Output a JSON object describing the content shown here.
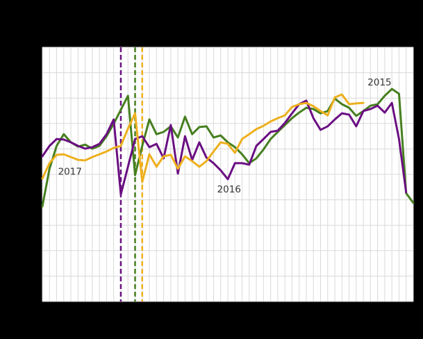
{
  "page": {
    "background_color": "#000000",
    "plot_background_color": "#ffffff",
    "grid_color": "#d9d9d9",
    "annotation_text_color": "#333333"
  },
  "chart_data": {
    "type": "line",
    "x_unit": "week",
    "x_range": [
      1,
      53
    ],
    "ylim": [
      0,
      10
    ],
    "y_gridline_step": 1,
    "grid": true,
    "legend": "none",
    "note": "Axis tick labels and title are not visible in the screenshot (black-on-black); y values estimated in gridline units, x in week numbers.",
    "series": [
      {
        "name": "2015",
        "color": "#467f1f",
        "start_week": 1,
        "values": [
          3.74,
          5.22,
          6.12,
          6.58,
          6.26,
          6.09,
          6.17,
          6.01,
          6.12,
          6.5,
          6.99,
          7.54,
          8.09,
          4.97,
          6.12,
          7.16,
          6.58,
          6.67,
          6.89,
          6.45,
          7.27,
          6.58,
          6.86,
          6.89,
          6.45,
          6.53,
          6.26,
          6.07,
          5.79,
          5.44,
          5.63,
          5.98,
          6.39,
          6.67,
          6.94,
          7.21,
          7.43,
          7.62,
          7.57,
          7.4,
          7.49,
          7.98,
          7.76,
          7.62,
          7.3,
          7.49,
          7.7,
          7.76,
          8.09,
          8.36,
          8.17,
          4.26,
          3.88
        ]
      },
      {
        "name": "2016",
        "color": "#6a0f82",
        "start_week": 1,
        "values": [
          5.71,
          6.12,
          6.39,
          6.37,
          6.26,
          6.12,
          6.01,
          6.07,
          6.2,
          6.58,
          7.16,
          4.21,
          5.3,
          6.39,
          6.5,
          6.07,
          6.2,
          5.63,
          6.94,
          5.03,
          6.5,
          5.57,
          6.26,
          5.66,
          5.44,
          5.16,
          4.81,
          5.44,
          5.44,
          5.38,
          6.12,
          6.39,
          6.67,
          6.72,
          7.02,
          7.4,
          7.76,
          7.9,
          7.21,
          6.75,
          6.89,
          7.16,
          7.4,
          7.35,
          6.89,
          7.49,
          7.57,
          7.7,
          7.43,
          7.81,
          6.39,
          4.29
        ]
      },
      {
        "name": "2017",
        "color": "#edb01e",
        "start_week": 1,
        "values": [
          4.84,
          5.44,
          5.77,
          5.79,
          5.68,
          5.57,
          5.55,
          5.68,
          5.79,
          5.9,
          6.04,
          6.12,
          6.8,
          7.4,
          4.7,
          5.79,
          5.3,
          5.71,
          5.77,
          5.22,
          5.71,
          5.52,
          5.3,
          5.52,
          5.9,
          6.26,
          6.2,
          5.85,
          6.39,
          6.58,
          6.78,
          6.91,
          7.08,
          7.21,
          7.32,
          7.65,
          7.76,
          7.81,
          7.68,
          7.49,
          7.32,
          8.03,
          8.14,
          7.76,
          7.79,
          7.81
        ]
      }
    ],
    "event_markers": [
      {
        "series": "2016",
        "week": 12,
        "color": "#6a0f82",
        "style": "dashed"
      },
      {
        "series": "2015",
        "week": 14,
        "color": "#467f1f",
        "style": "dashed"
      },
      {
        "series": "2017",
        "week": 15,
        "color": "#edb01e",
        "style": "dashed"
      }
    ],
    "annotations": [
      {
        "text": "2017",
        "week": 3.2,
        "value": 5.1
      },
      {
        "text": "2016",
        "week": 25.5,
        "value": 4.4
      },
      {
        "text": "2015",
        "week": 46.6,
        "value": 8.6
      }
    ]
  }
}
